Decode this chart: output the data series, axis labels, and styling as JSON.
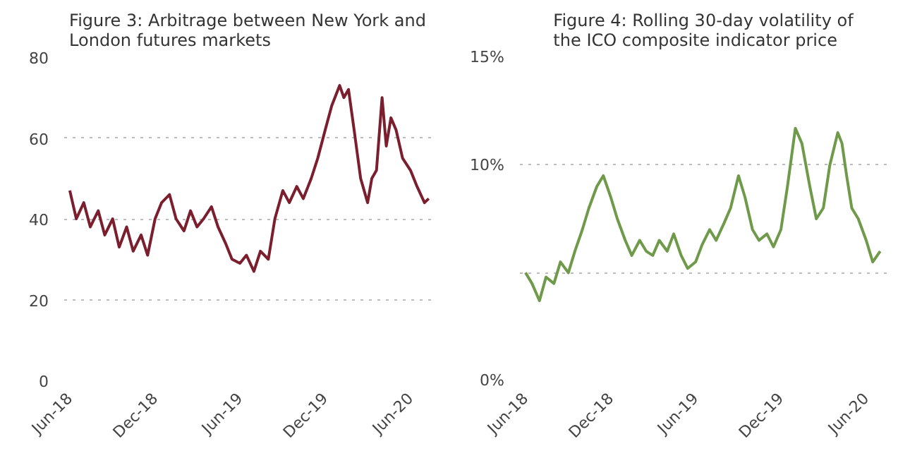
{
  "chart_data": [
    {
      "type": "line",
      "title": "Figure 3: Arbitrage between New York and London futures markets",
      "x": [
        "2018-06-01",
        "2018-06-15",
        "2018-07-01",
        "2018-07-15",
        "2018-08-01",
        "2018-08-15",
        "2018-09-01",
        "2018-09-15",
        "2018-10-01",
        "2018-10-15",
        "2018-11-01",
        "2018-11-15",
        "2018-12-01",
        "2018-12-15",
        "2019-01-01",
        "2019-01-15",
        "2019-02-01",
        "2019-02-15",
        "2019-03-01",
        "2019-03-15",
        "2019-04-01",
        "2019-04-15",
        "2019-05-01",
        "2019-05-15",
        "2019-06-01",
        "2019-06-15",
        "2019-07-01",
        "2019-07-15",
        "2019-08-01",
        "2019-08-15",
        "2019-09-01",
        "2019-09-15",
        "2019-10-01",
        "2019-10-15",
        "2019-11-01",
        "2019-11-15",
        "2019-12-01",
        "2019-12-15",
        "2020-01-01",
        "2020-01-10",
        "2020-01-20",
        "2020-02-01",
        "2020-02-15",
        "2020-03-01",
        "2020-03-10",
        "2020-03-20",
        "2020-04-01",
        "2020-04-10",
        "2020-04-20",
        "2020-05-01",
        "2020-05-15",
        "2020-06-01",
        "2020-06-15",
        "2020-07-01",
        "2020-07-10"
      ],
      "series": [
        {
          "color": "#7b1f2e",
          "values": [
            47,
            40,
            44,
            38,
            42,
            36,
            40,
            33,
            38,
            32,
            36,
            31,
            40,
            44,
            46,
            40,
            37,
            42,
            38,
            40,
            43,
            38,
            34,
            30,
            29,
            31,
            27,
            32,
            30,
            40,
            47,
            44,
            48,
            45,
            50,
            55,
            62,
            68,
            73,
            70,
            72,
            62,
            50,
            44,
            50,
            52,
            70,
            58,
            65,
            62,
            55,
            52,
            48,
            44,
            45
          ]
        }
      ],
      "xlim": [
        "2018-05-20",
        "2020-07-15"
      ],
      "xticks": [
        {
          "value": "2018-06-01",
          "label": "Jun-18"
        },
        {
          "value": "2018-12-01",
          "label": "Dec-18"
        },
        {
          "value": "2019-06-01",
          "label": "Jun-19"
        },
        {
          "value": "2019-12-01",
          "label": "Dec-19"
        },
        {
          "value": "2020-06-01",
          "label": "Jun-20"
        }
      ],
      "ylim": [
        0,
        80
      ],
      "yticks": [
        0,
        20,
        40,
        60,
        80
      ],
      "grid": "y"
    },
    {
      "type": "line",
      "title": "Figure 4: Rolling 30-day volatility of the ICO composite indicator price",
      "x": [
        "2018-06-01",
        "2018-06-15",
        "2018-07-01",
        "2018-07-15",
        "2018-08-01",
        "2018-08-15",
        "2018-09-01",
        "2018-09-15",
        "2018-10-01",
        "2018-10-15",
        "2018-11-01",
        "2018-11-15",
        "2018-12-01",
        "2018-12-15",
        "2019-01-01",
        "2019-01-15",
        "2019-02-01",
        "2019-02-15",
        "2019-03-01",
        "2019-03-15",
        "2019-04-01",
        "2019-04-15",
        "2019-05-01",
        "2019-05-15",
        "2019-06-01",
        "2019-06-15",
        "2019-07-01",
        "2019-07-15",
        "2019-08-01",
        "2019-08-15",
        "2019-09-01",
        "2019-09-15",
        "2019-10-01",
        "2019-10-15",
        "2019-11-01",
        "2019-11-15",
        "2019-12-01",
        "2019-12-15",
        "2020-01-01",
        "2020-01-15",
        "2020-02-01",
        "2020-02-15",
        "2020-03-01",
        "2020-03-15",
        "2020-04-01",
        "2020-04-10",
        "2020-04-20",
        "2020-05-01",
        "2020-05-15",
        "2020-06-01",
        "2020-06-15",
        "2020-07-01"
      ],
      "series": [
        {
          "color": "#6e9a4a",
          "values": [
            5.0,
            4.5,
            3.7,
            4.8,
            4.5,
            5.5,
            5.0,
            6.0,
            7.0,
            8.0,
            9.0,
            9.5,
            8.5,
            7.5,
            6.5,
            5.8,
            6.5,
            6.0,
            5.8,
            6.5,
            6.0,
            6.8,
            5.8,
            5.2,
            5.5,
            6.3,
            7.0,
            6.5,
            7.3,
            8.0,
            9.5,
            8.5,
            7.0,
            6.5,
            6.8,
            6.2,
            7.0,
            9.0,
            11.7,
            11.0,
            9.0,
            7.5,
            8.0,
            10.0,
            11.5,
            11.0,
            9.5,
            8.0,
            7.5,
            6.5,
            5.5,
            6.0
          ]
        }
      ],
      "xlim": [
        "2018-05-20",
        "2020-07-15"
      ],
      "xticks": [
        {
          "value": "2018-06-01",
          "label": "Jun-18"
        },
        {
          "value": "2018-12-01",
          "label": "Dec-18"
        },
        {
          "value": "2019-06-01",
          "label": "Jun-19"
        },
        {
          "value": "2019-12-01",
          "label": "Dec-19"
        },
        {
          "value": "2020-06-01",
          "label": "Jun-20"
        }
      ],
      "ylim": [
        0,
        15
      ],
      "yticks": [
        {
          "value": 0,
          "label": "0%"
        },
        {
          "value": 5,
          "label": null
        },
        {
          "value": 10,
          "label": "10%"
        },
        {
          "value": 15,
          "label": "15%"
        }
      ],
      "grid": "y"
    }
  ]
}
